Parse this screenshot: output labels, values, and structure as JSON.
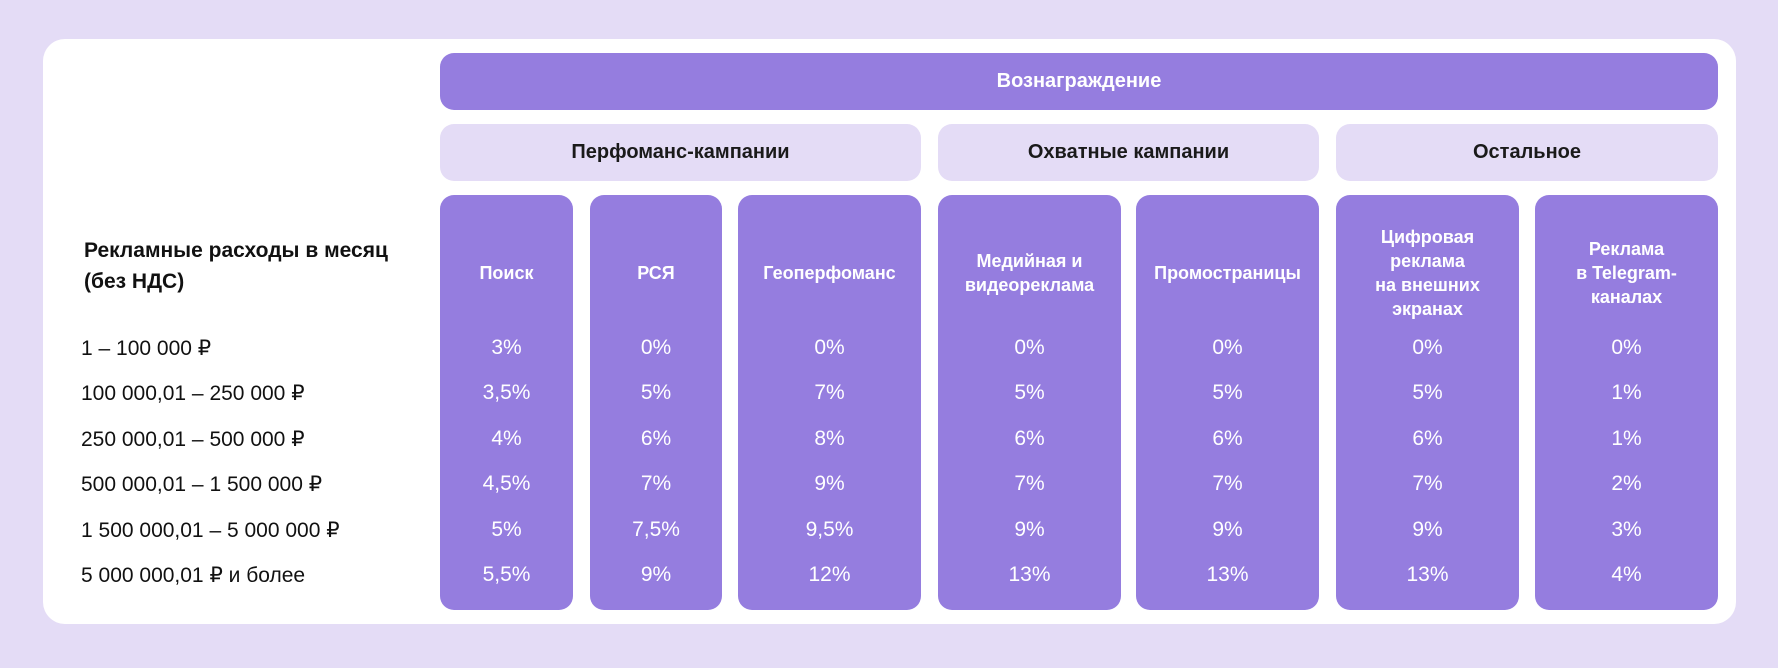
{
  "header": {
    "title": "Вознаграждение"
  },
  "groups": [
    {
      "label": "Перфоманс-кампании"
    },
    {
      "label": "Охватные кампании"
    },
    {
      "label": "Остальное"
    }
  ],
  "row_header": "Рекламные расходы в месяц\n(без НДС)",
  "rows": [
    "1 – 100 000 ₽",
    "100 000,01 – 250 000 ₽",
    "250 000,01 – 500 000 ₽",
    "500 000,01 – 1 500 000 ₽",
    "1 500 000,01 – 5 000 000 ₽",
    "5 000 000,01 ₽ и более"
  ],
  "columns": [
    {
      "title": "Поиск",
      "values": [
        "3%",
        "3,5%",
        "4%",
        "4,5%",
        "5%",
        "5,5%"
      ]
    },
    {
      "title": "РСЯ",
      "values": [
        "0%",
        "5%",
        "6%",
        "7%",
        "7,5%",
        "9%"
      ]
    },
    {
      "title": "Геоперфоманс",
      "values": [
        "0%",
        "7%",
        "8%",
        "9%",
        "9,5%",
        "12%"
      ]
    },
    {
      "title": "Медийная и\nвидеореклама",
      "values": [
        "0%",
        "5%",
        "6%",
        "7%",
        "9%",
        "13%"
      ]
    },
    {
      "title": "Промостраницы",
      "values": [
        "0%",
        "5%",
        "6%",
        "7%",
        "9%",
        "13%"
      ]
    },
    {
      "title": "Цифровая\nреклама\nна внешних\nэкранах",
      "values": [
        "0%",
        "5%",
        "6%",
        "7%",
        "9%",
        "13%"
      ]
    },
    {
      "title": "Реклама\nв Telegram-\nканалах",
      "values": [
        "0%",
        "1%",
        "1%",
        "2%",
        "3%",
        "4%"
      ]
    }
  ],
  "colors": {
    "accent": "#957ddf",
    "light": "#e4dcf6",
    "background": "#e4dcf6",
    "card": "#ffffff"
  }
}
